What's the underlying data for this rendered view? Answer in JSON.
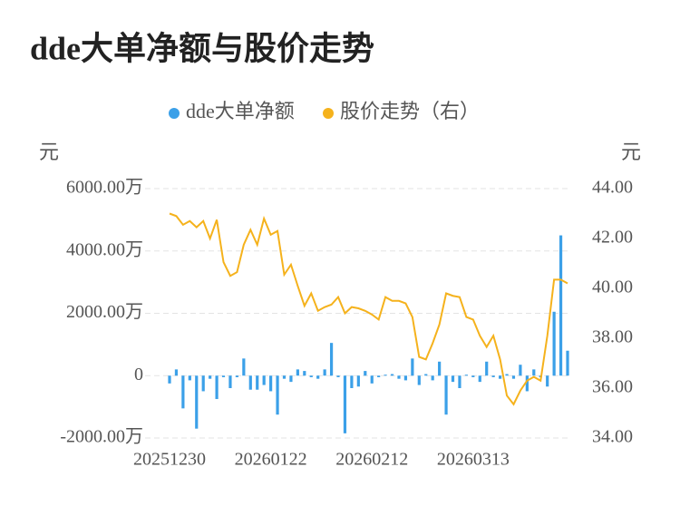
{
  "chart_data": {
    "type": "bar_line",
    "title": "dde大单净额与股价走势",
    "y_axis_label": "元",
    "y2_axis_label": "元",
    "categories": [
      "20251230",
      null,
      null,
      null,
      null,
      null,
      null,
      null,
      null,
      null,
      null,
      null,
      null,
      null,
      null,
      "20260122",
      null,
      null,
      null,
      null,
      null,
      null,
      null,
      null,
      null,
      null,
      null,
      null,
      null,
      null,
      "20260212",
      null,
      null,
      null,
      null,
      null,
      null,
      null,
      null,
      null,
      null,
      null,
      null,
      null,
      null,
      "20260313",
      null,
      null,
      null,
      null,
      null,
      null,
      null,
      null,
      null,
      null,
      null,
      null,
      null,
      null
    ],
    "series": [
      {
        "name": "dde大单净额",
        "color": "#3ba0e8",
        "type": "bar",
        "values": [
          -250,
          200,
          -1050,
          -150,
          -1700,
          -500,
          -100,
          -750,
          -50,
          -400,
          -50,
          550,
          -450,
          -450,
          -300,
          -500,
          -1250,
          -100,
          -200,
          200,
          150,
          -50,
          -100,
          200,
          1050,
          -50,
          -1850,
          -400,
          -350,
          150,
          -250,
          -50,
          30,
          50,
          -100,
          -150,
          550,
          -300,
          50,
          -150,
          450,
          -1250,
          -200,
          -400,
          30,
          -50,
          -200,
          450,
          -50,
          -100,
          50,
          -100,
          350,
          -500,
          200,
          -50,
          -350,
          2050,
          4500,
          800
        ]
      },
      {
        "name": "股价走势（右）",
        "color": "#f5b21c",
        "type": "line",
        "axis": "y2",
        "values": [
          43.0,
          42.9,
          42.55,
          42.7,
          42.45,
          42.7,
          42.0,
          42.75,
          41.05,
          40.5,
          40.65,
          41.75,
          42.35,
          41.75,
          42.8,
          42.15,
          42.3,
          40.55,
          40.95,
          40.1,
          39.3,
          39.8,
          39.1,
          39.25,
          39.35,
          39.65,
          39.0,
          39.25,
          39.2,
          39.1,
          38.95,
          38.75,
          39.65,
          39.5,
          39.5,
          39.4,
          38.85,
          37.25,
          37.15,
          37.8,
          38.55,
          39.8,
          39.7,
          39.65,
          38.85,
          38.75,
          38.1,
          37.65,
          38.1,
          37.15,
          35.7,
          35.35,
          35.9,
          36.3,
          36.45,
          36.3,
          38.1,
          40.35,
          40.35,
          40.2
        ]
      }
    ],
    "ylim": [
      -2000,
      6000
    ],
    "yticks": [
      {
        "value": -2000,
        "label": "-2000.00万"
      },
      0,
      {
        "value": 2000,
        "label": "2000.00万"
      },
      {
        "value": 4000,
        "label": "4000.00万"
      },
      {
        "value": 6000,
        "label": "6000.00万"
      }
    ],
    "y2lim": [
      34,
      44
    ],
    "y2ticks": [
      {
        "value": 34,
        "label": "34.00"
      },
      {
        "value": 36,
        "label": "36.00"
      },
      {
        "value": 38,
        "label": "38.00"
      },
      {
        "value": 40,
        "label": "40.00"
      },
      {
        "value": 42,
        "label": "42.00"
      },
      {
        "value": 44,
        "label": "44.00"
      }
    ],
    "grid": true
  }
}
